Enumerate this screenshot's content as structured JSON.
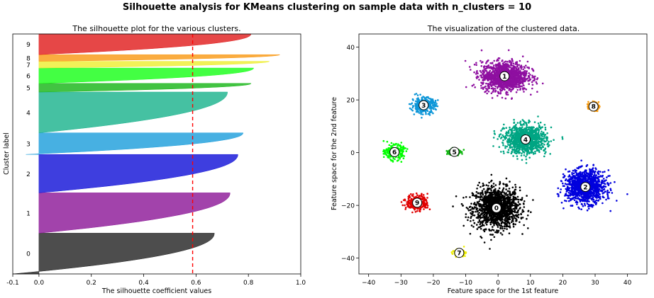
{
  "suptitle": "Silhouette analysis for KMeans clustering on sample data with n_clusters = 10",
  "chart_data": [
    {
      "type": "area",
      "title": "The silhouette plot for the various clusters.",
      "xlabel": "The silhouette coefficient values",
      "ylabel": "Cluster label",
      "xlim": [
        -0.1,
        1.0
      ],
      "xticks": [
        -0.1,
        0.0,
        0.2,
        0.4,
        0.6,
        0.8,
        1.0
      ],
      "xtick_labels": [
        "-0.1",
        "0.0",
        "0.2",
        "0.4",
        "0.6",
        "0.8",
        "1.0"
      ],
      "ylim": [
        0,
        1000
      ],
      "grid": false,
      "average_score": 0.587,
      "average_line_color": "#ff0000",
      "clusters": [
        {
          "label": "0",
          "start": 0,
          "end": 170,
          "max": 0.67,
          "min": -0.1,
          "color": "#262626"
        },
        {
          "label": "1",
          "start": 170,
          "end": 338,
          "max": 0.73,
          "min": 0.0,
          "color": "#8e1a99"
        },
        {
          "label": "2",
          "start": 338,
          "end": 498,
          "max": 0.76,
          "min": 0.0,
          "color": "#1414d8"
        },
        {
          "label": "3",
          "start": 498,
          "end": 588,
          "max": 0.78,
          "min": -0.05,
          "color": "#1e9fdc"
        },
        {
          "label": "4",
          "start": 588,
          "end": 758,
          "max": 0.72,
          "min": 0.0,
          "color": "#1cb38e"
        },
        {
          "label": "5",
          "start": 758,
          "end": 794,
          "max": 0.81,
          "min": 0.0,
          "color": "#19b619"
        },
        {
          "label": "6",
          "start": 794,
          "end": 858,
          "max": 0.82,
          "min": 0.0,
          "color": "#1aff1a"
        },
        {
          "label": "7",
          "start": 858,
          "end": 886,
          "max": 0.88,
          "min": 0.0,
          "color": "#eeee33"
        },
        {
          "label": "8",
          "start": 886,
          "end": 914,
          "max": 0.92,
          "min": 0.0,
          "color": "#f99a16"
        },
        {
          "label": "9",
          "start": 914,
          "end": 1000,
          "max": 0.81,
          "min": 0.0,
          "color": "#e01e1e"
        }
      ]
    },
    {
      "type": "scatter",
      "title": "The visualization of the clustered data.",
      "xlabel": "Feature space for the 1st feature",
      "ylabel": "Feature space for the 2nd feature",
      "xlim": [
        -43,
        46
      ],
      "ylim": [
        -46,
        45
      ],
      "xticks": [
        -40,
        -30,
        -20,
        -10,
        0,
        10,
        20,
        30,
        40
      ],
      "xtick_labels": [
        "−40",
        "−30",
        "−20",
        "−10",
        "0",
        "10",
        "20",
        "30",
        "40"
      ],
      "yticks": [
        -40,
        -20,
        0,
        20,
        40
      ],
      "ytick_labels": [
        "−40",
        "−20",
        "0",
        "20",
        "40"
      ],
      "grid": false,
      "clusters": [
        {
          "label": "0",
          "x": -0.5,
          "y": -21,
          "sx": 6.5,
          "sy": 7,
          "color": "#000000"
        },
        {
          "label": "1",
          "x": 2,
          "y": 29,
          "sx": 6.5,
          "sy": 5,
          "color": "#8e0fa0"
        },
        {
          "label": "2",
          "x": 27,
          "y": -13,
          "sx": 5.5,
          "sy": 5.5,
          "color": "#0000dd"
        },
        {
          "label": "3",
          "x": -23,
          "y": 18,
          "sx": 3.3,
          "sy": 2.6,
          "color": "#0d96d8"
        },
        {
          "label": "4",
          "x": 8.5,
          "y": 5,
          "sx": 5.8,
          "sy": 4.8,
          "color": "#00a583"
        },
        {
          "label": "5",
          "x": -13.5,
          "y": 0.3,
          "sx": 1.6,
          "sy": 1.2,
          "color": "#0fb60f"
        },
        {
          "label": "6",
          "x": -32,
          "y": 0.2,
          "sx": 2.6,
          "sy": 2.4,
          "color": "#00ff00"
        },
        {
          "label": "7",
          "x": -12,
          "y": -38,
          "sx": 1.4,
          "sy": 1.0,
          "color": "#eeee00"
        },
        {
          "label": "8",
          "x": 29.5,
          "y": 17.5,
          "sx": 1.4,
          "sy": 1.4,
          "color": "#fa9a0a"
        },
        {
          "label": "9",
          "x": -25,
          "y": -19,
          "sx": 3.0,
          "sy": 2.6,
          "color": "#e00000"
        }
      ]
    }
  ]
}
